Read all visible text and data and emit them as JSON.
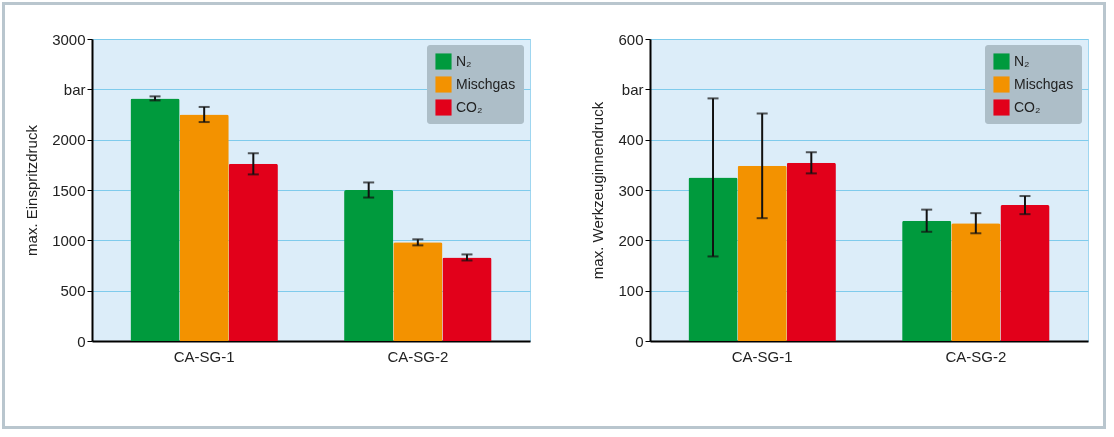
{
  "chart_data": [
    {
      "type": "bar",
      "ylabel": "max. Einspritzdruck",
      "categories": [
        "CA-SG-1",
        "CA-SG-2"
      ],
      "ylim": [
        0,
        3000
      ],
      "yticks": [
        0,
        500,
        1000,
        1500,
        2000,
        {
          "value": 2500,
          "label": "bar"
        },
        3000
      ],
      "grid": "y",
      "legend": "top right",
      "series": [
        {
          "name": "N₂",
          "color": "#009a3d",
          "values": [
            2410,
            1500
          ],
          "errors": [
            20,
            75
          ]
        },
        {
          "name": "Mischgas",
          "color": "#f39200",
          "values": [
            2250,
            980
          ],
          "errors": [
            75,
            30
          ]
        },
        {
          "name": "CO₂",
          "color": "#e2001a",
          "values": [
            1760,
            830
          ],
          "errors": [
            105,
            30
          ]
        }
      ]
    },
    {
      "type": "bar",
      "ylabel": "max. Werkzeuginnendruck",
      "categories": [
        "CA-SG-1",
        "CA-SG-2"
      ],
      "ylim": [
        0,
        600
      ],
      "yticks": [
        0,
        100,
        200,
        300,
        400,
        {
          "value": 500,
          "label": "bar"
        },
        600
      ],
      "grid": "y",
      "legend": "top right",
      "series": [
        {
          "name": "N₂",
          "color": "#009a3d",
          "values": [
            325,
            239
          ],
          "errors": [
            157,
            22
          ]
        },
        {
          "name": "Mischgas",
          "color": "#f39200",
          "values": [
            348,
            234
          ],
          "errors": [
            104,
            20
          ]
        },
        {
          "name": "CO₂",
          "color": "#e2001a",
          "values": [
            354,
            270
          ],
          "errors": [
            21,
            18
          ]
        }
      ]
    }
  ]
}
